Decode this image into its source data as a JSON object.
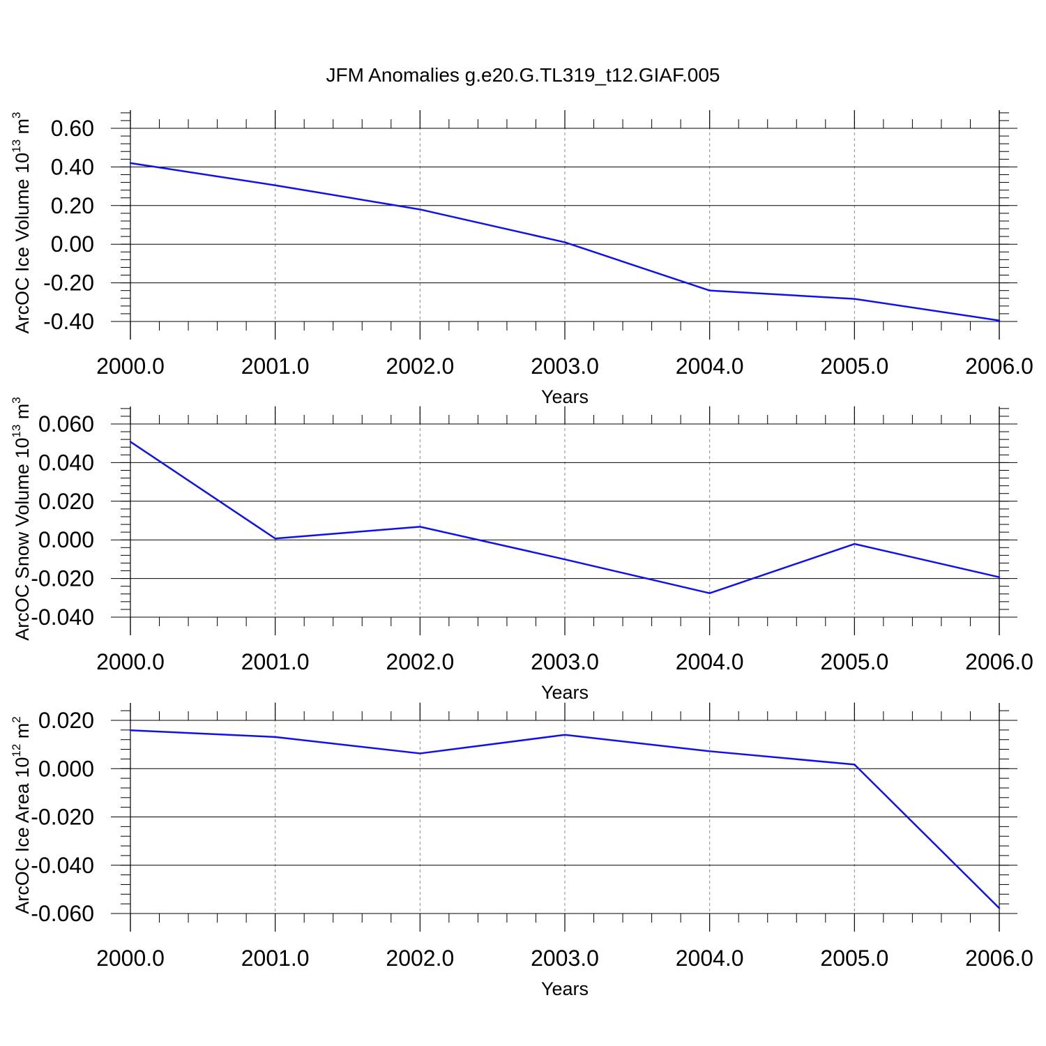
{
  "title": "JFM Anomalies g.e20.G.TL319_t12.GIAF.005",
  "colors": {
    "line": "#1010ee",
    "axis": "#000000",
    "grid": "#888888"
  },
  "chart_data": [
    {
      "type": "line",
      "xlabel": "Years",
      "ylabel": {
        "text": "ArcOC Ice Volume 10",
        "exp1": "13",
        "mid": " m",
        "exp2": "3"
      },
      "x": [
        2000,
        2001,
        2002,
        2003,
        2004,
        2005,
        2006
      ],
      "y": [
        0.42,
        0.305,
        0.18,
        0.01,
        -0.24,
        -0.283,
        -0.395
      ],
      "xlim": [
        2000,
        2006
      ],
      "ylim": [
        -0.4,
        0.6
      ],
      "ytick_labels": [
        "-0.40",
        "-0.20",
        "0.00",
        "0.20",
        "0.40",
        "0.60"
      ],
      "xtick_labels": [
        "2000.0",
        "2001.0",
        "2002.0",
        "2003.0",
        "2004.0",
        "2005.0",
        "2006.0"
      ],
      "grid": "x-dashed"
    },
    {
      "type": "line",
      "xlabel": "Years",
      "ylabel": {
        "text": "ArcOC Snow Volume 10",
        "exp1": "13",
        "mid": " m",
        "exp2": "3"
      },
      "x": [
        2000,
        2001,
        2002,
        2003,
        2004,
        2005,
        2006
      ],
      "y": [
        0.0508,
        0.0007,
        0.0068,
        -0.0101,
        -0.0276,
        -0.0021,
        -0.0193
      ],
      "xlim": [
        2000,
        2006
      ],
      "ylim": [
        -0.04,
        0.06
      ],
      "ytick_labels": [
        "-0.040",
        "-0.020",
        "0.000",
        "0.020",
        "0.040",
        "0.060"
      ],
      "xtick_labels": [
        "2000.0",
        "2001.0",
        "2002.0",
        "2003.0",
        "2004.0",
        "2005.0",
        "2006.0"
      ],
      "grid": "x-dashed"
    },
    {
      "type": "line",
      "xlabel": "Years",
      "ylabel": {
        "text": "ArcOC Ice Area 10",
        "exp1": "12",
        "mid": " m",
        "exp2": "2"
      },
      "x": [
        2000,
        2001,
        2002,
        2003,
        2004,
        2005,
        2006
      ],
      "y": [
        0.0159,
        0.0131,
        0.0063,
        0.014,
        0.0072,
        0.0017,
        -0.0578
      ],
      "xlim": [
        2000,
        2006
      ],
      "ylim": [
        -0.06,
        0.02
      ],
      "ytick_labels": [
        "-0.060",
        "-0.040",
        "-0.020",
        "0.000",
        "0.020"
      ],
      "xtick_labels": [
        "2000.0",
        "2001.0",
        "2002.0",
        "2003.0",
        "2004.0",
        "2005.0",
        "2006.0"
      ],
      "grid": "x-dashed"
    }
  ]
}
